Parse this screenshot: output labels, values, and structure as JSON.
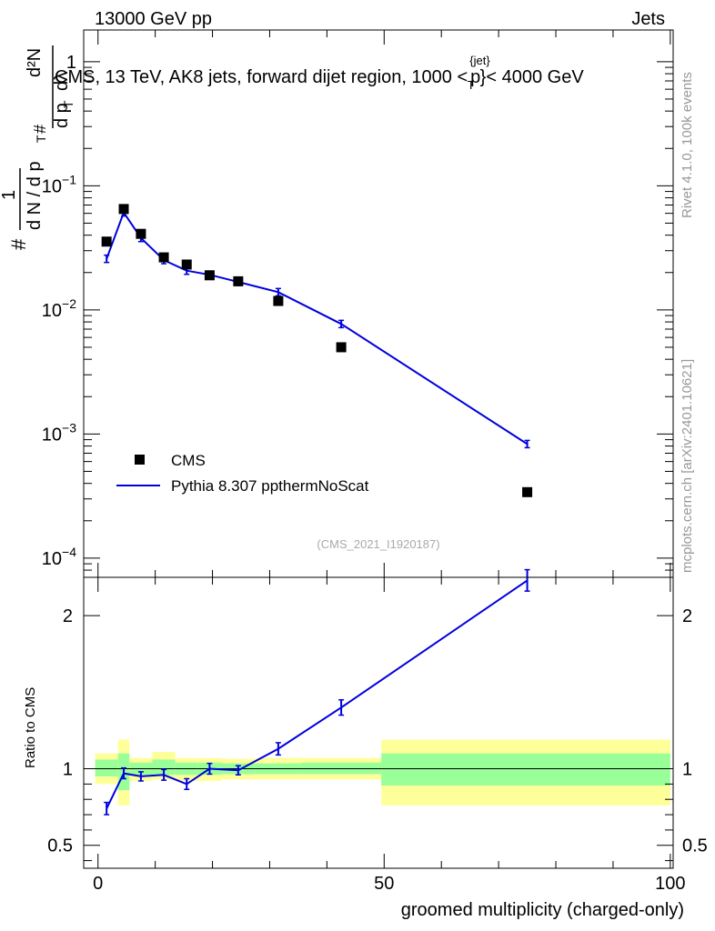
{
  "header": {
    "left": "13000 GeV pp",
    "right": "Jets"
  },
  "side_labels": {
    "rivet": "Rivet 4.1.0,  100k events",
    "mcplots": "mcplots.cern.ch [arXiv:2401.10621]"
  },
  "chart_data": [
    {
      "type": "line",
      "panel": "main",
      "title_prefix": "CMS, 13 TeV, AK8 jets, forward dijet region, 1000 <",
      "title_sym": "p",
      "title_sub": "T",
      "title_sup": "{jet}",
      "title_suffix": "}< 4000 GeV",
      "watermark": "(CMS_2021_I1920187)",
      "ylabel_parts": [
        "#",
        "1",
        "d N / d p",
        "T",
        "#",
        "d p",
        "T",
        "dλ",
        "d²N"
      ],
      "yscale": "log",
      "ylim": [
        7e-05,
        1.8
      ],
      "xlim": [
        -2.5,
        100.5
      ],
      "ytick_labels": [
        {
          "value": 0.0001,
          "base": "10",
          "exp": "−4"
        },
        {
          "value": 0.001,
          "base": "10",
          "exp": "−3"
        },
        {
          "value": 0.01,
          "base": "10",
          "exp": "−2"
        },
        {
          "value": 0.1,
          "base": "10",
          "exp": "−1"
        },
        {
          "value": 1,
          "base": "1",
          "exp": ""
        }
      ],
      "legend": [
        {
          "label": "CMS",
          "marker": "square",
          "color": "#000000"
        },
        {
          "label": "Pythia 8.307 ppthermNoScat",
          "marker": "line",
          "color": "#0000dd"
        }
      ],
      "series": [
        {
          "name": "CMS",
          "x": [
            1.5,
            4.5,
            7.5,
            11.5,
            15.5,
            19.5,
            24.5,
            31.5,
            42.5,
            75
          ],
          "y": [
            0.0355,
            0.065,
            0.041,
            0.0265,
            0.0232,
            0.019,
            0.017,
            0.0118,
            0.005,
            0.00034
          ]
        },
        {
          "name": "Pythia 8.307 ppthermNoScat",
          "x": [
            1.5,
            4.5,
            7.5,
            11.5,
            15.5,
            19.5,
            24.5,
            31.5,
            42.5,
            75
          ],
          "y": [
            0.0258,
            0.061,
            0.038,
            0.0252,
            0.0207,
            0.0192,
            0.0168,
            0.0139,
            0.0077,
            0.00083
          ]
        }
      ]
    },
    {
      "type": "line",
      "panel": "ratio",
      "ylabel": "Ratio to CMS",
      "ylim": [
        0.35,
        2.25
      ],
      "xlim": [
        -2.5,
        100.5
      ],
      "xlabel": "groomed multiplicity (charged-only)",
      "xtick_labels": [
        "0",
        "50",
        "100"
      ],
      "ytick_labels": [
        "0.5",
        "1",
        "2"
      ],
      "bands": [
        {
          "x0": -0.5,
          "x1": 3.5,
          "inner": [
            0.95,
            1.06
          ],
          "outer": [
            0.9,
            1.1
          ]
        },
        {
          "x0": 3.5,
          "x1": 5.5,
          "inner": [
            0.86,
            1.1
          ],
          "outer": [
            0.76,
            1.19
          ]
        },
        {
          "x0": 5.5,
          "x1": 9.5,
          "inner": [
            0.96,
            1.04
          ],
          "outer": [
            0.92,
            1.07
          ]
        },
        {
          "x0": 9.5,
          "x1": 13.5,
          "inner": [
            0.96,
            1.06
          ],
          "outer": [
            0.93,
            1.11
          ]
        },
        {
          "x0": 13.5,
          "x1": 17.5,
          "inner": [
            0.96,
            1.04
          ],
          "outer": [
            0.92,
            1.07
          ]
        },
        {
          "x0": 17.5,
          "x1": 21.5,
          "inner": [
            0.96,
            1.04
          ],
          "outer": [
            0.92,
            1.07
          ]
        },
        {
          "x0": 21.5,
          "x1": 27.5,
          "inner": [
            0.965,
            1.035
          ],
          "outer": [
            0.93,
            1.065
          ]
        },
        {
          "x0": 27.5,
          "x1": 35.5,
          "inner": [
            0.965,
            1.035
          ],
          "outer": [
            0.93,
            1.07
          ]
        },
        {
          "x0": 35.5,
          "x1": 49.5,
          "inner": [
            0.965,
            1.04
          ],
          "outer": [
            0.93,
            1.07
          ]
        },
        {
          "x0": 49.5,
          "x1": 100,
          "inner": [
            0.89,
            1.1
          ],
          "outer": [
            0.76,
            1.19
          ]
        }
      ],
      "series": [
        {
          "name": "Pythia 8.307 ppthermNoScat",
          "x": [
            1.5,
            4.5,
            7.5,
            11.5,
            15.5,
            19.5,
            24.5,
            31.5,
            42.5,
            75
          ],
          "y": [
            0.74,
            0.97,
            0.95,
            0.96,
            0.9,
            1.0,
            0.99,
            1.13,
            1.4,
            2.23
          ],
          "err": [
            0.04,
            0.035,
            0.03,
            0.035,
            0.035,
            0.035,
            0.03,
            0.04,
            0.05,
            0.07
          ]
        }
      ]
    }
  ]
}
